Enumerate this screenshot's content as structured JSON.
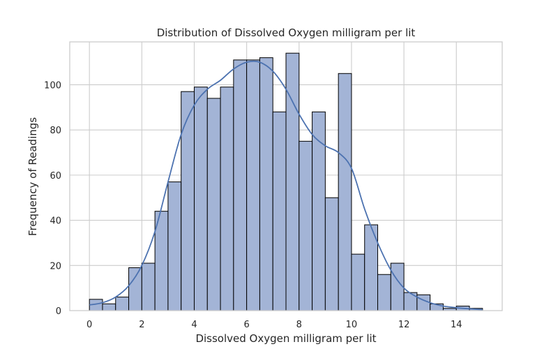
{
  "chart_data": {
    "type": "bar",
    "subtype": "histogram-with-kde",
    "title": "Distribution of Dissolved Oxygen milligram per lit",
    "xlabel": "Dissolved Oxygen milligram per lit",
    "ylabel": "Frequency of Readings",
    "xlim": [
      -0.75,
      15.75
    ],
    "ylim": [
      0,
      119
    ],
    "xticks": [
      0,
      2,
      4,
      6,
      8,
      10,
      12,
      14
    ],
    "yticks": [
      0,
      20,
      40,
      60,
      80,
      100
    ],
    "grid": true,
    "bin_edges": [
      0,
      0.5,
      1,
      1.5,
      2,
      2.5,
      3,
      3.5,
      4,
      4.5,
      5,
      5.5,
      6,
      6.5,
      7,
      7.5,
      8,
      8.5,
      9,
      9.5,
      10,
      10.5,
      11,
      11.5,
      12,
      12.5,
      13,
      13.5,
      14,
      14.5,
      15
    ],
    "counts": [
      5,
      3,
      6,
      19,
      21,
      44,
      57,
      97,
      99,
      94,
      99,
      111,
      111,
      112,
      88,
      114,
      75,
      88,
      50,
      105,
      25,
      38,
      16,
      21,
      8,
      7,
      3,
      1,
      2,
      1
    ],
    "bar_color": "#a3b4d6",
    "edge_color": "#000000",
    "kde": {
      "color": "#4c72b0",
      "x": [
        0,
        0.5,
        1,
        1.5,
        2,
        2.5,
        3,
        3.5,
        4,
        4.5,
        5,
        5.5,
        6,
        6.5,
        7,
        7.5,
        8,
        8.5,
        9,
        9.5,
        10,
        10.5,
        11,
        11.5,
        12,
        12.5,
        13,
        13.5,
        14,
        14.5,
        15
      ],
      "y": [
        2.5,
        3.5,
        6,
        11,
        20,
        35,
        57,
        78,
        91,
        98,
        102,
        107,
        110,
        110,
        106,
        98,
        87,
        78,
        73,
        70,
        63,
        45,
        30,
        18,
        10,
        6,
        3.5,
        2,
        1.3,
        0.8,
        0.4
      ]
    }
  }
}
